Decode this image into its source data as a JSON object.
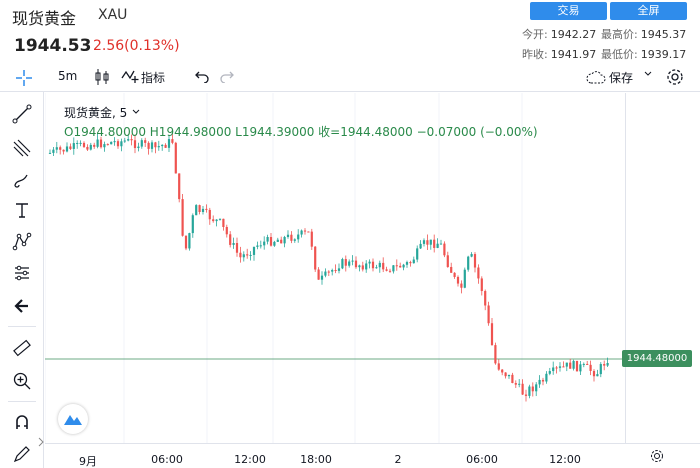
{
  "header": {
    "name": "现货黄金",
    "symbol": "XAU",
    "last": "1944.53",
    "change": "2.56(0.13%)",
    "trade_btn": "交易",
    "fullscreen_btn": "全屏",
    "open_label": "今开:",
    "open": "1942.27",
    "high_label": "最高价:",
    "high": "1945.37",
    "prev_label": "昨收:",
    "prev": "1941.97",
    "low_label": "最低价:",
    "low": "1939.17"
  },
  "toolbar": {
    "interval": "5m",
    "indicators": "指标",
    "save": "保存"
  },
  "legend": {
    "title": "现货黄金, 5",
    "ohlc": "O1944.80000  H1944.98000  L1944.39000  收=1944.48000  −0.07000 (−0.00%)"
  },
  "price_label": "1944.48000",
  "colors": {
    "up": "#26a69a",
    "down": "#ef5350",
    "price_line": "#3c8f5e",
    "accent": "#2f8ceb"
  },
  "x_ticks": [
    "9月",
    "06:00",
    "12:00",
    "18:00",
    "2",
    "06:00",
    "12:00"
  ],
  "chart_data": {
    "type": "line",
    "x": [
      "9月",
      "06:00",
      "12:00",
      "18:00",
      "2",
      "06:00",
      "12:00"
    ],
    "series": [
      {
        "values": [
          1945.8,
          1945.9,
          1943.6,
          1943.0,
          1942.9,
          1939.6,
          1940.5
        ]
      }
    ]
  }
}
